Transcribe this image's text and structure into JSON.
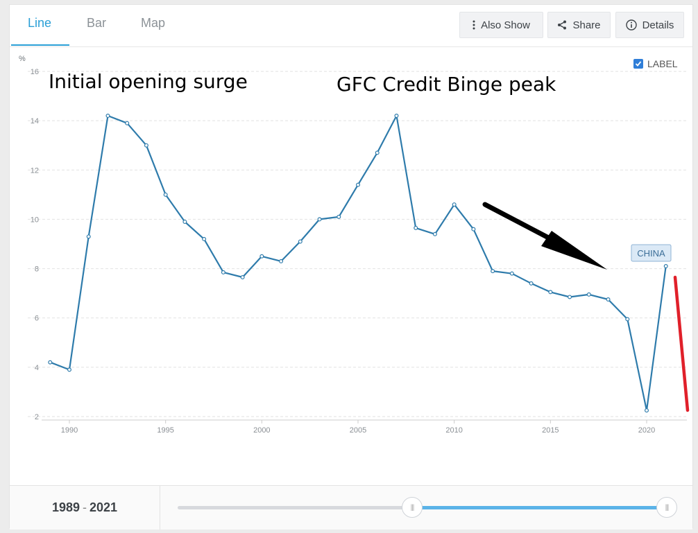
{
  "tabs": [
    {
      "label": "Line",
      "active": true
    },
    {
      "label": "Bar",
      "active": false
    },
    {
      "label": "Map",
      "active": false
    }
  ],
  "toolbar": {
    "also_show": "Also Show",
    "share": "Share",
    "details": "Details"
  },
  "label_toggle": {
    "text": "LABEL",
    "checked": true
  },
  "annotations": {
    "opening": "Initial opening surge",
    "gfc": "GFC Credit Binge peak",
    "series_label": "CHINA"
  },
  "range": {
    "start": "1989",
    "end": "2021",
    "separator": "-"
  },
  "colors": {
    "accent": "#2a9fd6",
    "line": "#2e7bab",
    "arrow": "#000000",
    "redline": "#e0202a"
  },
  "chart_data": {
    "type": "line",
    "yunit": "%",
    "ylim": [
      2,
      16
    ],
    "yticks": [
      2,
      4,
      6,
      8,
      10,
      12,
      14,
      16
    ],
    "xlim": [
      1989,
      2021
    ],
    "xticks": [
      1990,
      1995,
      2000,
      2005,
      2010,
      2015,
      2020
    ],
    "grid": true,
    "series": [
      {
        "name": "CHINA",
        "x": [
          1989,
          1990,
          1991,
          1992,
          1993,
          1994,
          1995,
          1996,
          1997,
          1998,
          1999,
          2000,
          2001,
          2002,
          2003,
          2004,
          2005,
          2006,
          2007,
          2008,
          2009,
          2010,
          2011,
          2012,
          2013,
          2014,
          2015,
          2016,
          2017,
          2018,
          2019,
          2020,
          2021
        ],
        "y": [
          4.2,
          3.9,
          9.3,
          14.2,
          13.9,
          13.0,
          11.0,
          9.9,
          9.2,
          7.85,
          7.65,
          8.5,
          8.3,
          9.1,
          10.0,
          10.1,
          11.4,
          12.7,
          14.2,
          9.65,
          9.4,
          10.6,
          9.6,
          7.9,
          7.8,
          7.4,
          7.05,
          6.85,
          6.95,
          6.75,
          5.95,
          2.25,
          8.1
        ]
      }
    ]
  }
}
